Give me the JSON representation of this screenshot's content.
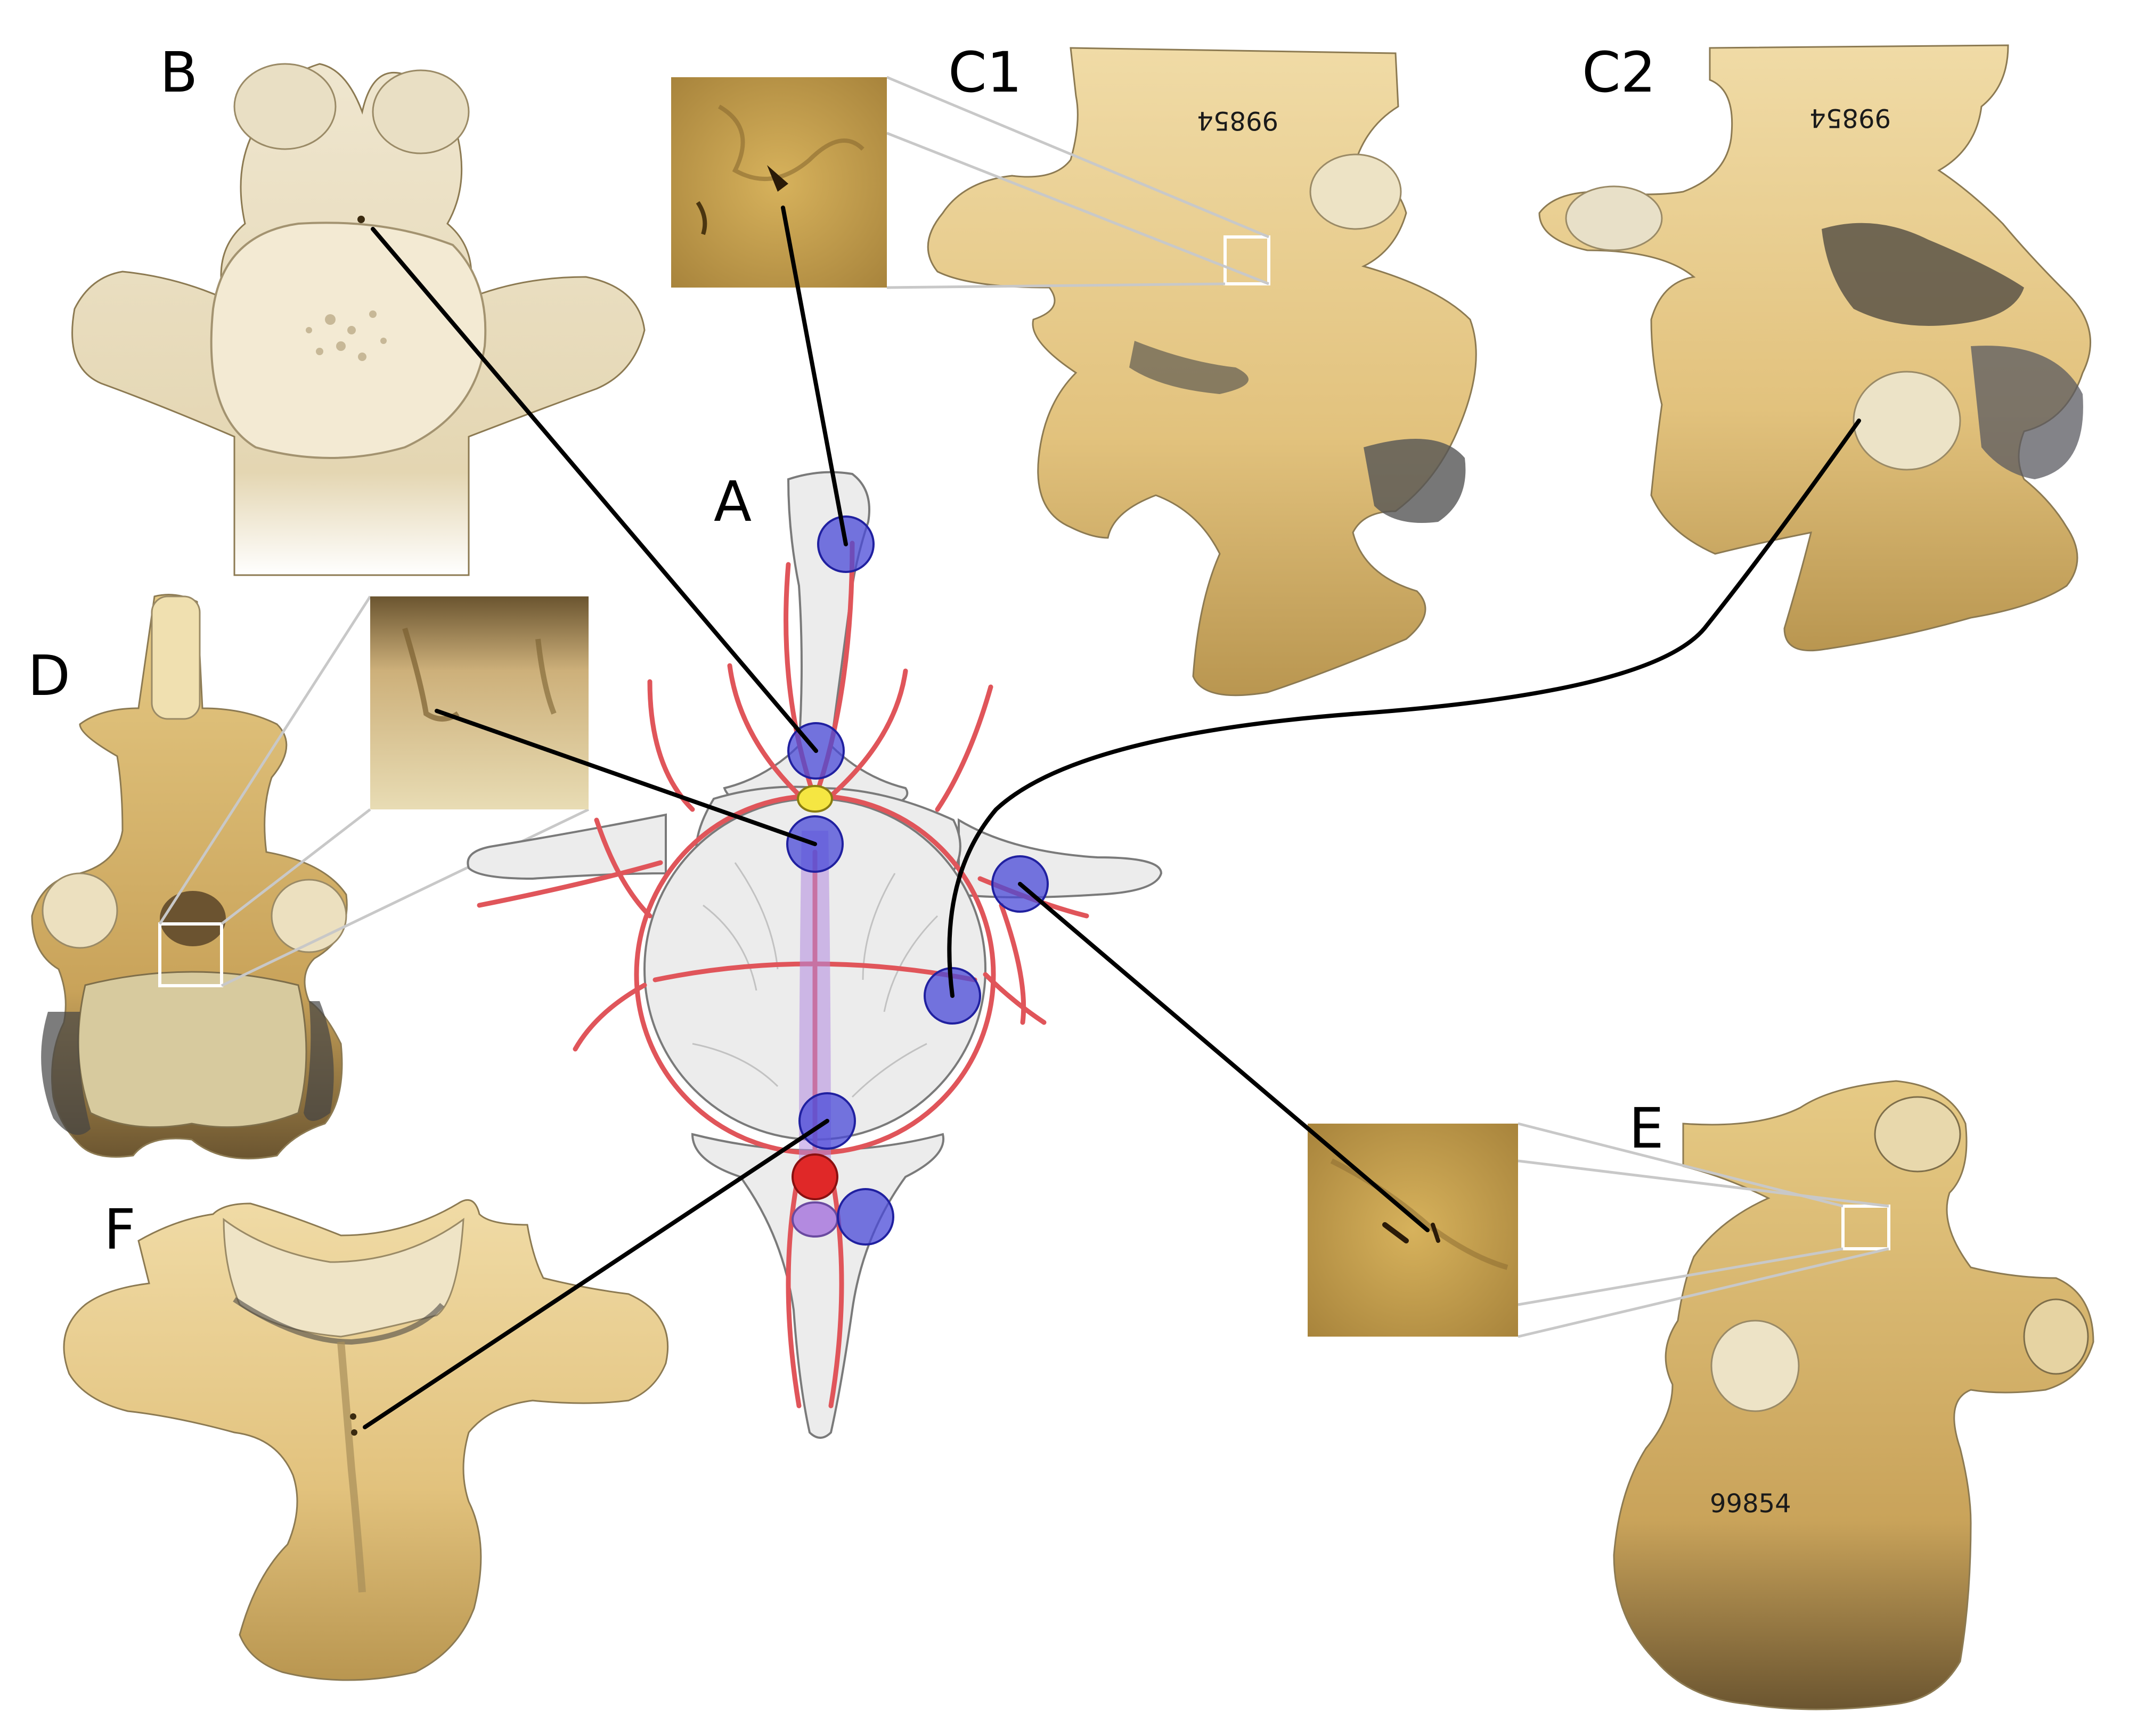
{
  "figure": {
    "panels": {
      "A": "A",
      "B": "B",
      "C1": "C1",
      "C2": "C2",
      "D": "D",
      "E": "E",
      "F": "F"
    },
    "specimen_numbers": {
      "c1": "99854",
      "c2": "99854",
      "e": "99854"
    },
    "colors": {
      "background": "#ffffff",
      "bone_light": "#e9cf93",
      "bone_dark": "#b8954f",
      "articular_surface": "#eee4c8",
      "schematic_bone": "#ececec",
      "artery": "#e0555a",
      "foramen_marker": "#4a4ad8",
      "spinal_cord": "#f5e642",
      "vein": "#b38ae0",
      "aorta": "#e02828",
      "leader_line": "#000000",
      "zoom_guide": "#c8c8c8"
    }
  }
}
